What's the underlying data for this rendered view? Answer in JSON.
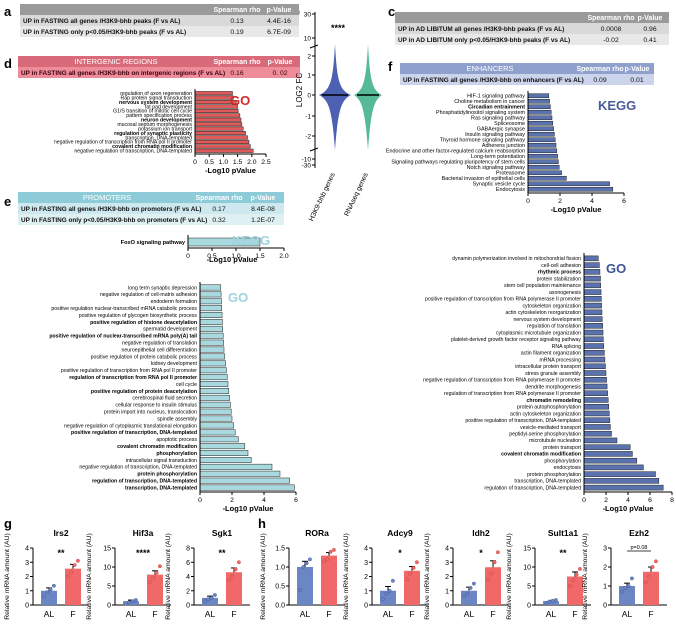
{
  "panel_labels": {
    "a": "a",
    "b": "b",
    "c": "c",
    "d": "d",
    "e": "e",
    "f": "f",
    "g": "g",
    "h": "h"
  },
  "tables": {
    "a": {
      "header": [
        "",
        "Spearman rho",
        "p-Value"
      ],
      "rows": [
        [
          "UP in FASTING all genes /H3K9-bhb peaks (F vs AL)",
          "0.13",
          "4.4E-16"
        ],
        [
          "UP in FASTING only p<0.05/H3K9-bhb peaks (F vs AL)",
          "0.19",
          "6.7E-09"
        ]
      ]
    },
    "c": {
      "header": [
        "",
        "Spearman rho",
        "p-Value"
      ],
      "rows": [
        [
          "UP in AD LIBITUM all genes /H3K9-bhb peaks (F vs AL)",
          "0.0008",
          "0.96"
        ],
        [
          "UP in AD LIBITUM only p<0.05/H3K9-bhb peaks (F vs AL)",
          "-0.02",
          "0.41"
        ]
      ]
    },
    "d": {
      "header": [
        "INTERGENIC REGIONS",
        "Spearman rho",
        "p-Value"
      ],
      "rows": [
        [
          "UP in FASTING all genes /H3K9-bhb on intergenic regions  (F vs AL)",
          "0.16",
          "0. 02"
        ]
      ]
    },
    "e": {
      "header": [
        "PROMOTERS",
        "Spearman rho",
        "p-Value"
      ],
      "rows": [
        [
          "UP in FASTING all genes /H3K9-bhb on promoters (F vs AL)",
          "0.17",
          "8.4E-08"
        ],
        [
          "UP in FASTING only p<0.05/H3K9-bhb on promoters (F vs AL)",
          "0.32",
          "1.2E-07"
        ]
      ]
    },
    "f": {
      "header": [
        "ENHANCERS",
        "Spearman rho",
        "p-Value"
      ],
      "rows": [
        [
          "UP in FASTING all genes /H3K9-bhb on enhancers (F vs AL)",
          "0.09",
          "0.01"
        ]
      ]
    }
  },
  "chart_data": [
    {
      "id": "d_go",
      "type": "bar",
      "orientation": "horizontal",
      "tag": "GO",
      "xlabel": "-Log10 pValue",
      "xlim": [
        0,
        2.5
      ],
      "xticks": [
        "0",
        "0.5",
        "1.0",
        "1.5",
        "2.0",
        "2.5"
      ],
      "color": "#e05a5a",
      "categories": [
        "regulation of axon regeneration",
        "Rap protein signal transduction",
        "nervous system development",
        "fat pad development",
        "G1/S transition of mitotic cell cycle",
        "pattern specification process",
        "neuron development",
        "mucosal septum morphogenesis",
        "potassium ion transport",
        "regulation of synaptic plasticity",
        "transcription, DNA-templated",
        "negative regulation of transcription from RNA pol II promoter",
        "covalent chromatin modification",
        "negative regulation of transcription, DNA-templated"
      ],
      "bold": [
        "nervous system development",
        "neuron development",
        "regulation of synaptic plasticity",
        "covalent chromatin modification"
      ],
      "values": [
        1.32,
        1.35,
        1.45,
        1.5,
        1.52,
        1.58,
        1.62,
        1.65,
        1.7,
        1.78,
        1.85,
        1.9,
        1.95,
        2.05
      ]
    },
    {
      "id": "b_violin",
      "type": "violin",
      "ylabel": "LOG2 FC",
      "yticks": [
        "-30",
        "-10",
        "-2",
        "-1",
        "0",
        "1",
        "2",
        "10",
        "30"
      ],
      "categories": [
        "H3K9-bhb genes",
        "RNAseq genes"
      ],
      "annotation": "****",
      "colors": [
        "#3b4fa8",
        "#44b28c"
      ]
    },
    {
      "id": "e_kegg",
      "type": "bar",
      "orientation": "horizontal",
      "tag": "KEGG",
      "xlabel": "-Log10 pValue",
      "xlim": [
        0,
        2.0
      ],
      "xticks": [
        "0",
        "0.5",
        "1.0",
        "1.5",
        "2.0"
      ],
      "color": "#a8d9df",
      "categories": [
        "FoxO signaling pathway"
      ],
      "bold": [
        "FoxO signaling pathway"
      ],
      "values": [
        1.5
      ]
    },
    {
      "id": "e_go",
      "type": "bar",
      "orientation": "horizontal",
      "tag": "GO",
      "xlabel": "-Log10 pValue",
      "xlim": [
        0,
        6
      ],
      "xticks": [
        "0",
        "2",
        "4",
        "6"
      ],
      "color": "#a8d9df",
      "categories": [
        "long term synaptic depression",
        "negative regulation of cell-matrix adhesion",
        "endoderm formation",
        "positive regulation nuclear-transcribed mRNA catabolic process",
        "positive regulation of glycogen biosynthetic process",
        "positive regulation of histone deacetylation",
        "spermatid development",
        "positive regulation of nuclear-transcribed mRNA poly(A) tail",
        "negative regulation of translation",
        "neuroepithelial cell differentiation",
        "positive regulation of protein catabolic process",
        "kidney development",
        "positive regulation of transcription from RNA pol II promoter",
        "regulation of transcription from RNA pol II promoter",
        "cell cycle",
        "positive regulation of protein deacetylation",
        "cerebrospinal fluid secretion",
        "cellular response to insulin stimulus",
        "protein import into nucleus, translocation",
        "spindle assembly",
        "negative regulation of cytoplasmic translational elongation",
        "positive regulation of transcription, DNA-templated",
        "apoptotic process",
        "covalent chromatin modification",
        "phosphorylation",
        "intracellular signal transduction",
        "negative regulation of transcription, DNA-templated",
        "protein phosphorylation",
        "regulation of transcription, DNA-templated",
        "transcription, DNA-templated"
      ],
      "bold": [
        "positive regulation of histone deacetylation",
        "positive regulation of nuclear-transcribed mRNA poly(A) tail",
        "regulation of transcription from RNA pol II promoter",
        "positive regulation of protein deacetylation",
        "positive regulation of transcription, DNA-templated",
        "covalent chromatin modification",
        "phosphorylation",
        "protein phosphorylation",
        "regulation of transcription, DNA-templated",
        "transcription, DNA-templated"
      ],
      "values": [
        1.3,
        1.32,
        1.34,
        1.36,
        1.38,
        1.4,
        1.42,
        1.45,
        1.48,
        1.5,
        1.55,
        1.6,
        1.65,
        1.7,
        1.75,
        1.8,
        1.85,
        1.9,
        1.95,
        2.0,
        2.1,
        2.2,
        2.4,
        2.8,
        3.0,
        3.2,
        4.5,
        5.0,
        5.6,
        5.9
      ]
    },
    {
      "id": "f_kegg",
      "type": "bar",
      "orientation": "horizontal",
      "tag": "KEGG",
      "xlabel": "-Log10 pValue",
      "xlim": [
        0,
        6
      ],
      "xticks": [
        "0",
        "2",
        "4",
        "6"
      ],
      "color": "#5a72ad",
      "categories": [
        "HIF-1 signaling pathway",
        "Choline metabolism in cancer",
        "Circadian entrainment",
        "Phosphatidylinositol signaling system",
        "Ras signaling pathway",
        "Spliceosome",
        "GABAergic synapse",
        "Insulin signaling pathway",
        "Thyroid hormone signaling pathway",
        "Adherens junction",
        "Endocrine and other factor-regulated calcium reabsorption",
        "Long-term potentiation",
        "Signaling pathways regulating pluripotency of stem cells",
        "Notch signaling pathway",
        "Proteasome",
        "Bacterial invasion of epithelial cells",
        "Synaptic vesicle cycle",
        "Endocytosis"
      ],
      "bold": [
        "Circadian entrainment"
      ],
      "values": [
        1.3,
        1.35,
        1.4,
        1.45,
        1.5,
        1.55,
        1.6,
        1.65,
        1.7,
        1.75,
        1.8,
        1.85,
        1.9,
        1.95,
        2.1,
        2.4,
        5.1,
        5.3
      ]
    },
    {
      "id": "f_go",
      "type": "bar",
      "orientation": "horizontal",
      "tag": "GO",
      "xlabel": "-Log10 pValue",
      "xlim": [
        0,
        8
      ],
      "xticks": [
        "0",
        "2",
        "4",
        "6",
        "8"
      ],
      "color": "#5a72ad",
      "categories": [
        "dynamin polymerization involved in mitochondrial fission",
        "cell-cell adhesion",
        "rhythmic process",
        "protein stabilization",
        "stem cell population maintenance",
        "axonogenesis",
        "positive regulation of transcription from RNA polymerase II promoter",
        "cytoskeleton organization",
        "actin cytoskeleton reorganization",
        "nervous system development",
        "regulation of translation",
        "cytoplasmic microtubule organization",
        "platelet-derived growth factor receptor signaling pathway",
        "RNA splicing",
        "actin filament organization",
        "mRNA processing",
        "intracellular protein transport",
        "stress granule assembly",
        "negative regulation of transcription from RNA polymerase II promoter",
        "dendrite morphogenesis",
        "regulation of transcription from RNA polymerase II promoter",
        "chromatin remodeling",
        "protein autophosphorylation",
        "actin cytoskeleton organization",
        "positive regulation of transcription, DNA-templated",
        "vesicle-mediated transport",
        "peptidyl-serine phosphorylation",
        "microtubule nucleation",
        "protein transport",
        "covalent chromatin modification",
        "phosphorylation",
        "endocytosis",
        "protein phosphorylation",
        "transcription, DNA-templated",
        "regulation of transcription, DNA-templated"
      ],
      "bold": [
        "rhythmic process",
        "chromatin remodeling",
        "covalent chromatin modification"
      ],
      "values": [
        1.3,
        1.4,
        1.45,
        1.5,
        1.52,
        1.55,
        1.58,
        1.6,
        1.63,
        1.66,
        1.7,
        1.73,
        1.76,
        1.8,
        1.85,
        1.9,
        1.95,
        2.0,
        2.05,
        2.1,
        2.15,
        2.2,
        2.25,
        2.3,
        2.35,
        2.4,
        2.5,
        3.0,
        4.2,
        4.4,
        4.8,
        5.4,
        6.5,
        6.8,
        7.2
      ]
    },
    {
      "id": "g",
      "type": "bar-dot",
      "ylabel": "Relative mRNA amount (AU)",
      "groups": [
        "AL",
        "F"
      ],
      "colors": [
        "#6c86c4",
        "#f06868"
      ],
      "genes": [
        {
          "name": "Irs2",
          "ylim": [
            0,
            4
          ],
          "yticks": [
            "0",
            "1",
            "2",
            "3",
            "4"
          ],
          "means": [
            1.0,
            2.55
          ],
          "errors": [
            0.2,
            0.3
          ],
          "points": [
            [
              0.6,
              0.9,
              1.1,
              1.35
            ],
            [
              2.0,
              2.3,
              2.8,
              3.1
            ]
          ],
          "sig": "**"
        },
        {
          "name": "Hif3a",
          "ylim": [
            0,
            15
          ],
          "yticks": [
            "0",
            "5",
            "10",
            "15"
          ],
          "means": [
            1.0,
            8.0
          ],
          "errors": [
            0.3,
            1.0
          ],
          "points": [
            [
              0.4,
              0.7,
              1.0,
              1.3
            ],
            [
              6.0,
              7.2,
              8.5,
              10.2
            ]
          ],
          "sig": "****"
        },
        {
          "name": "Sgk1",
          "ylim": [
            0,
            8
          ],
          "yticks": [
            "0",
            "2",
            "4",
            "6",
            "8"
          ],
          "means": [
            1.0,
            4.6
          ],
          "errors": [
            0.25,
            0.6
          ],
          "points": [
            [
              0.5,
              0.8,
              1.0,
              1.4
            ],
            [
              3.5,
              4.0,
              5.0,
              6.0
            ]
          ],
          "sig": "**"
        }
      ]
    },
    {
      "id": "h",
      "type": "bar-dot",
      "ylabel": "Relative mRNA amount (AU)",
      "groups": [
        "AL",
        "F"
      ],
      "colors": [
        "#6c86c4",
        "#f06868"
      ],
      "genes": [
        {
          "name": "RORa",
          "ylim": [
            0,
            1.5
          ],
          "yticks": [
            "0.0",
            "0.5",
            "1.0",
            "1.5"
          ],
          "means": [
            1.0,
            1.3
          ],
          "errors": [
            0.15,
            0.08
          ],
          "points": [
            [
              0.4,
              1.0,
              1.1,
              1.2
            ],
            [
              1.15,
              1.2,
              1.4,
              1.45
            ]
          ],
          "sig": ""
        },
        {
          "name": "Adcy9",
          "ylim": [
            0,
            4
          ],
          "yticks": [
            "0",
            "1",
            "2",
            "3",
            "4"
          ],
          "means": [
            1.0,
            2.4
          ],
          "errors": [
            0.3,
            0.3
          ],
          "points": [
            [
              0.4,
              0.8,
              1.0,
              1.7
            ],
            [
              1.8,
              2.2,
              2.6,
              3.0
            ]
          ],
          "sig": "*"
        },
        {
          "name": "Idh2",
          "ylim": [
            0,
            4
          ],
          "yticks": [
            "0",
            "1",
            "2",
            "3",
            "4"
          ],
          "means": [
            1.0,
            2.65
          ],
          "errors": [
            0.25,
            0.45
          ],
          "points": [
            [
              0.6,
              0.8,
              1.2,
              1.5
            ],
            [
              1.8,
              2.2,
              3.0,
              3.7
            ]
          ],
          "sig": "*"
        },
        {
          "name": "Sult1a1",
          "ylim": [
            0,
            15
          ],
          "yticks": [
            "0",
            "5",
            "10",
            "15"
          ],
          "means": [
            1.0,
            7.5
          ],
          "errors": [
            0.2,
            1.2
          ],
          "points": [
            [
              0.6,
              0.9,
              1.1,
              1.3
            ],
            [
              5.0,
              6.5,
              8.0,
              9.5
            ]
          ],
          "sig": "**"
        },
        {
          "name": "Ezh2",
          "ylim": [
            0,
            3
          ],
          "yticks": [
            "0",
            "1",
            "2",
            "3"
          ],
          "means": [
            1.0,
            1.75
          ],
          "errors": [
            0.15,
            0.25
          ],
          "points": [
            [
              0.7,
              0.9,
              1.0,
              1.4
            ],
            [
              1.2,
              1.5,
              2.0,
              2.3
            ]
          ],
          "sig": "p=0.08"
        }
      ]
    }
  ]
}
